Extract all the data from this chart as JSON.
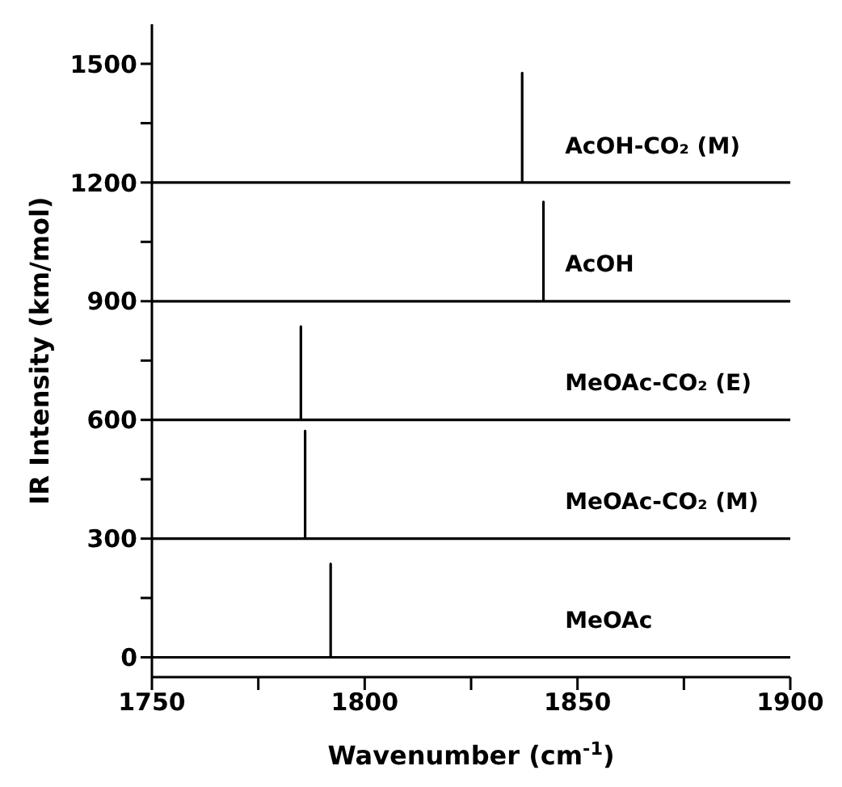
{
  "chart_data": {
    "type": "line",
    "xlabel": "Wavenumber (cm$^{-1}$)",
    "ylabel": "IR Intensity (km/mol)",
    "xlim": [
      1750,
      1900
    ],
    "xticks": [
      1750,
      {
        "value": 1775,
        "label": null
      },
      1800,
      {
        "value": 1825,
        "label": null
      },
      1850,
      {
        "value": 1875,
        "label": null
      },
      1900
    ],
    "ylim": [
      -50,
      1600
    ],
    "yticks": [
      0,
      {
        "value": 150,
        "label": null
      },
      300,
      {
        "value": 450,
        "label": null
      },
      600,
      {
        "value": 750,
        "label": null
      },
      900,
      {
        "value": 1050,
        "label": null
      },
      1200,
      {
        "value": 1350,
        "label": null
      },
      1500
    ],
    "grid": false,
    "legend": false,
    "marker": "none",
    "line_style": "solid",
    "series": [
      {
        "name": "MeOAc",
        "color": "#000000",
        "x": [
          1750,
          1792,
          1792,
          1792,
          1900
        ],
        "values": [
          0,
          0,
          236,
          0,
          0
        ]
      },
      {
        "name": "MeOAc-CO₂ (M)",
        "color": "#000000",
        "x": [
          1750,
          1786,
          1786,
          1786,
          1900
        ],
        "values": [
          300,
          300,
          572,
          300,
          300
        ]
      },
      {
        "name": "MeOAc-CO₂ (E)",
        "color": "#000000",
        "x": [
          1750,
          1785,
          1785,
          1785,
          1900
        ],
        "values": [
          600,
          600,
          836,
          600,
          600
        ]
      },
      {
        "name": "AcOH",
        "color": "#000000",
        "x": [
          1750,
          1842,
          1842,
          1842,
          1900
        ],
        "values": [
          900,
          900,
          1151,
          900,
          900
        ]
      },
      {
        "name": "AcOH-CO₂ (M)",
        "color": "#000000",
        "x": [
          1750,
          1837,
          1837,
          1837,
          1900
        ],
        "values": [
          1200,
          1200,
          1477,
          1200,
          1200
        ]
      }
    ]
  }
}
